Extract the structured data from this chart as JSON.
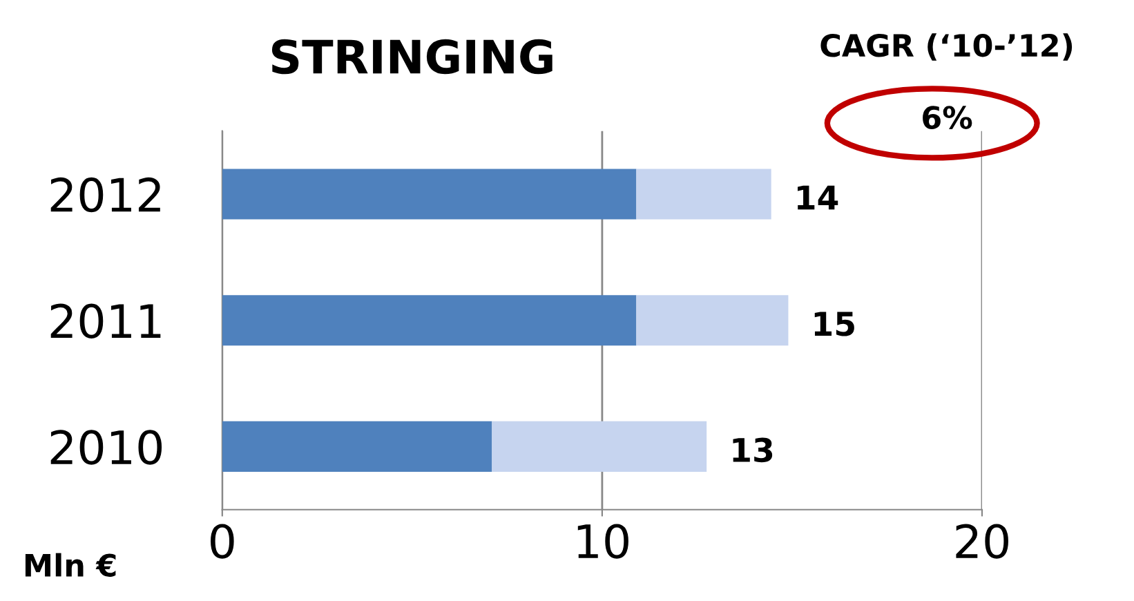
{
  "chart_data": {
    "type": "bar",
    "orientation": "horizontal",
    "stacked": true,
    "title": "STRINGING",
    "categories": [
      "2012",
      "2011",
      "2010"
    ],
    "series": [
      {
        "color": "#4f81bd",
        "values": [
          10.9,
          10.9,
          7.1
        ]
      },
      {
        "color": "#c6d4ef",
        "values": [
          3.55,
          4.0,
          5.65
        ]
      }
    ],
    "totals": [
      "14",
      "15",
      "13"
    ],
    "xlim": [
      0,
      20
    ],
    "xticks": [
      0,
      10,
      20
    ],
    "grid": "x",
    "annotations": [
      "CAGR (‘10-’12)",
      "6%",
      "Mln €"
    ]
  }
}
